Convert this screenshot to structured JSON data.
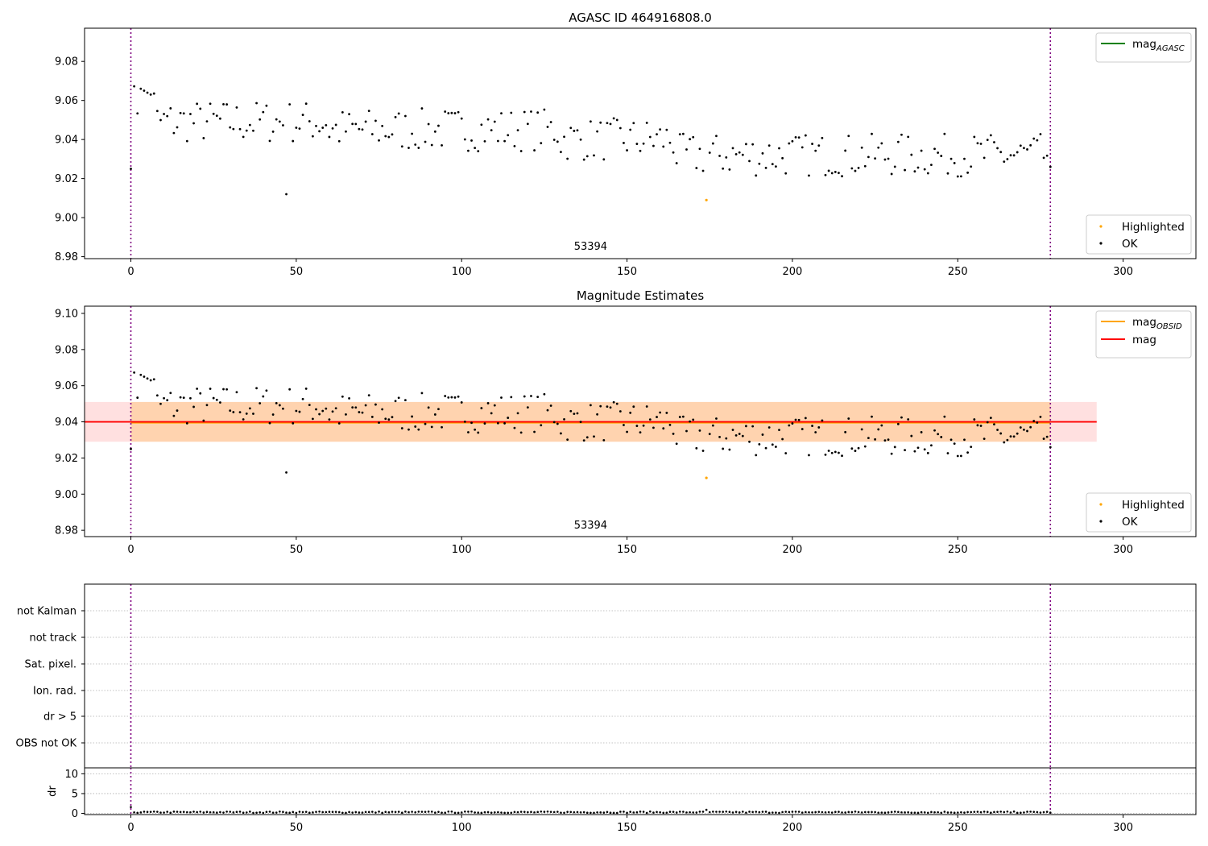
{
  "chart_data": [
    {
      "type": "scatter",
      "title": "AGASC ID 464916808.0",
      "xlim": [
        -14,
        322
      ],
      "ylim": [
        8.979,
        9.097
      ],
      "xticks": [
        0,
        50,
        100,
        150,
        200,
        250,
        300
      ],
      "yticks": [
        8.98,
        9.0,
        9.02,
        9.04,
        9.06,
        9.08
      ],
      "ytick_labels": [
        "8.98",
        "9.00",
        "9.02",
        "9.04",
        "9.06",
        "9.08"
      ],
      "vlines": [
        0,
        278
      ],
      "annotation": {
        "text": "53394",
        "x": 139,
        "y": 8.9835
      },
      "legend_lines": [
        {
          "label": "mag",
          "subscript": "AGASC",
          "color": "#008000"
        }
      ],
      "legend_points": [
        {
          "label": "Highlighted",
          "color": "#ffa500"
        },
        {
          "label": "OK",
          "color": "#000000"
        }
      ],
      "series_ok_n": 279,
      "highlighted": [
        {
          "x": 174,
          "y": 9.009
        }
      ],
      "outliers": [
        {
          "x": 47,
          "y": 9.012
        }
      ]
    },
    {
      "type": "scatter",
      "title": "Magnitude Estimates",
      "xlim": [
        -14,
        322
      ],
      "ylim": [
        8.9765,
        9.104
      ],
      "xticks": [
        0,
        50,
        100,
        150,
        200,
        250,
        300
      ],
      "yticks": [
        8.98,
        9.0,
        9.02,
        9.04,
        9.06,
        9.08,
        9.1
      ],
      "ytick_labels": [
        "8.98",
        "9.00",
        "9.02",
        "9.04",
        "9.06",
        "9.08",
        "9.10"
      ],
      "vlines": [
        0,
        278
      ],
      "annotation": {
        "text": "53394",
        "x": 139,
        "y": 8.981
      },
      "mag_band": {
        "x": [
          -14,
          292
        ],
        "ylow": 9.029,
        "yhigh": 9.051,
        "center": 9.04,
        "color": "#ff0000"
      },
      "mag_obsid_band": {
        "x": [
          0,
          278
        ],
        "ylow": 9.029,
        "yhigh": 9.051,
        "center": 9.0395,
        "color": "#ffa500"
      },
      "legend_lines": [
        {
          "label": "mag",
          "subscript": "OBSID",
          "color": "#ffa500"
        },
        {
          "label": "mag",
          "subscript": "",
          "color": "#ff0000"
        }
      ],
      "legend_points": [
        {
          "label": "Highlighted",
          "color": "#ffa500"
        },
        {
          "label": "OK",
          "color": "#000000"
        }
      ],
      "highlighted": [
        {
          "x": 174,
          "y": 9.009
        }
      ],
      "outliers": [
        {
          "x": 47,
          "y": 9.012
        }
      ]
    },
    {
      "type": "scatter",
      "xlim": [
        -14,
        322
      ],
      "categories": [
        "not Kalman",
        "not track",
        "Sat. pixel.",
        "Ion. rad.",
        "dr > 5",
        "OBS not OK"
      ],
      "vlines": [
        0,
        278
      ]
    },
    {
      "type": "scatter",
      "ylabel": "dr",
      "xlim": [
        -14,
        322
      ],
      "ylim": [
        -0.3,
        11.5
      ],
      "xticks": [
        0,
        50,
        100,
        150,
        200,
        250,
        300
      ],
      "yticks": [
        0,
        5,
        10
      ],
      "ytick_labels": [
        "0",
        "5",
        "10"
      ],
      "vlines": [
        0,
        278
      ],
      "n_points": 279,
      "typical_dr": 0.3
    }
  ]
}
